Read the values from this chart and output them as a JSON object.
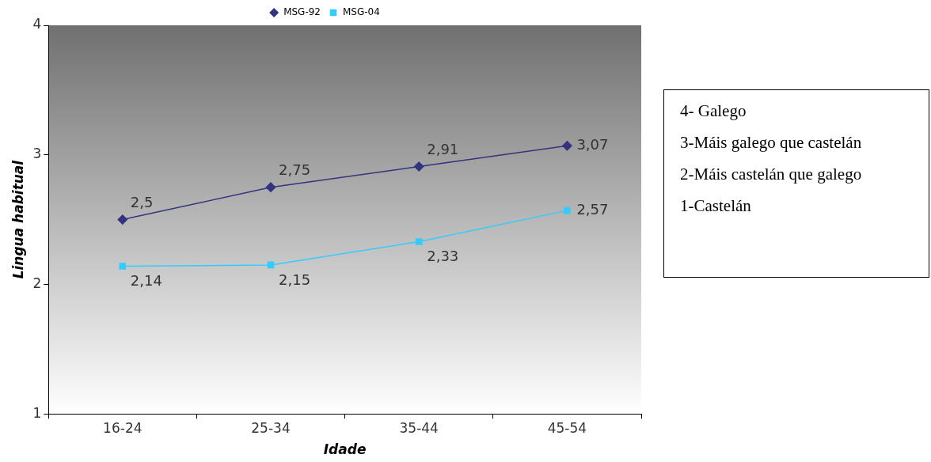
{
  "chart_data": {
    "type": "line",
    "xlabel": "Idade",
    "ylabel": "Lingua habitual",
    "categories": [
      "16-24",
      "25-34",
      "35-44",
      "45-54"
    ],
    "series": [
      {
        "name": "MSG-92",
        "color": "#333380",
        "marker": "diamond",
        "values": [
          2.5,
          2.75,
          2.91,
          3.07
        ],
        "value_labels": [
          "2,5",
          "2,75",
          "2,91",
          "3,07"
        ]
      },
      {
        "name": "MSG-04",
        "color": "#33ccff",
        "marker": "square",
        "values": [
          2.14,
          2.15,
          2.33,
          2.57
        ],
        "value_labels": [
          "2,14",
          "2,15",
          "2,33",
          "2,57"
        ]
      }
    ],
    "ylim": [
      1,
      4
    ],
    "yticks": [
      1,
      2,
      3,
      4
    ],
    "legend": "top",
    "line_style": "solid",
    "annotations": [
      "4- Galego",
      "3-Máis galego que castelán",
      "2-Máis castelán que galego",
      "1-Castelán"
    ]
  }
}
